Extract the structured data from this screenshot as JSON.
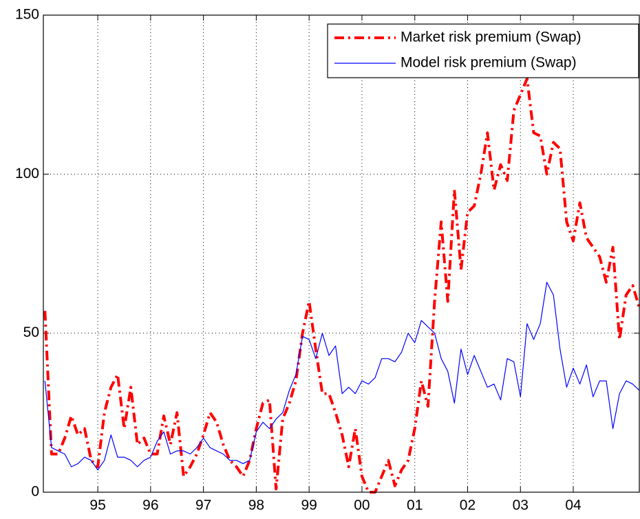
{
  "chart_data": {
    "type": "line",
    "x": [
      1994.0,
      1994.125,
      1994.25,
      1994.375,
      1994.5,
      1994.625,
      1994.75,
      1994.875,
      1995.0,
      1995.125,
      1995.25,
      1995.375,
      1995.5,
      1995.625,
      1995.75,
      1995.875,
      1996.0,
      1996.125,
      1996.25,
      1996.375,
      1996.5,
      1996.625,
      1996.75,
      1996.875,
      1997.0,
      1997.125,
      1997.25,
      1997.375,
      1997.5,
      1997.625,
      1997.75,
      1997.875,
      1998.0,
      1998.125,
      1998.25,
      1998.375,
      1998.5,
      1998.625,
      1998.75,
      1998.875,
      1999.0,
      1999.125,
      1999.25,
      1999.375,
      1999.5,
      1999.625,
      1999.75,
      1999.875,
      2000.0,
      2000.125,
      2000.25,
      2000.375,
      2000.5,
      2000.625,
      2000.75,
      2000.875,
      2001.0,
      2001.125,
      2001.25,
      2001.375,
      2001.5,
      2001.625,
      2001.75,
      2001.875,
      2002.0,
      2002.125,
      2002.25,
      2002.375,
      2002.5,
      2002.625,
      2002.75,
      2002.875,
      2003.0,
      2003.125,
      2003.25,
      2003.375,
      2003.5,
      2003.625,
      2003.75,
      2003.875,
      2004.0,
      2004.125,
      2004.25,
      2004.375,
      2004.5,
      2004.625,
      2004.75,
      2004.875,
      2005.0,
      2005.125,
      2005.25
    ],
    "series": [
      {
        "name": "Market risk premium (Swap)",
        "color": "#ff0000",
        "style": "dashdot",
        "values": [
          57,
          12,
          12,
          17,
          24,
          18,
          20,
          10,
          8,
          25,
          33,
          37,
          20,
          33,
          15,
          17,
          12,
          12,
          24,
          15,
          25,
          5,
          8,
          12,
          18,
          25,
          22,
          15,
          10,
          8,
          5,
          10,
          20,
          28,
          29,
          1,
          23,
          28,
          35,
          50,
          60,
          45,
          31,
          31,
          25,
          18,
          8,
          20,
          5,
          0,
          0,
          5,
          10,
          2,
          7,
          10,
          20,
          35,
          27,
          60,
          85,
          60,
          95,
          70,
          88,
          90,
          100,
          113,
          95,
          103,
          98,
          120,
          125,
          130,
          113,
          112,
          100,
          110,
          108,
          85,
          79,
          91,
          80,
          77,
          74,
          66,
          77,
          48,
          62,
          65,
          58
        ]
      },
      {
        "name": "Model risk premium (Swap)",
        "color": "#0000ff",
        "style": "solid",
        "values": [
          35,
          14,
          13,
          12,
          8,
          9,
          11,
          10,
          7,
          10,
          18,
          11,
          11,
          10,
          8,
          10,
          11,
          16,
          19,
          12,
          13,
          13,
          12,
          14,
          17,
          14,
          13,
          12,
          10,
          10,
          9,
          10,
          19,
          22,
          20,
          23,
          25,
          32,
          37,
          49,
          48,
          42,
          50,
          43,
          46,
          31,
          33,
          31,
          35,
          34,
          36,
          42,
          42,
          41,
          44,
          50,
          47,
          54,
          52,
          50,
          42,
          38,
          28,
          45,
          37,
          43,
          38,
          33,
          34,
          29,
          42,
          41,
          30,
          53,
          48,
          53,
          66,
          62,
          45,
          33,
          39,
          34,
          40,
          30,
          35,
          35,
          20,
          31,
          35,
          34,
          32
        ]
      }
    ],
    "xlim": [
      1993.97,
      2005.25
    ],
    "xticks": [
      {
        "value": 1995,
        "label": "95"
      },
      {
        "value": 1996,
        "label": "96"
      },
      {
        "value": 1997,
        "label": "97"
      },
      {
        "value": 1998,
        "label": "98"
      },
      {
        "value": 1999,
        "label": "99"
      },
      {
        "value": 2000,
        "label": "00"
      },
      {
        "value": 2001,
        "label": "01"
      },
      {
        "value": 2002,
        "label": "02"
      },
      {
        "value": 2003,
        "label": "03"
      },
      {
        "value": 2004,
        "label": "04"
      }
    ],
    "ylim": [
      0,
      150
    ],
    "yticks": [
      0,
      50,
      100,
      150
    ],
    "grid": true,
    "legend": "upper right"
  }
}
